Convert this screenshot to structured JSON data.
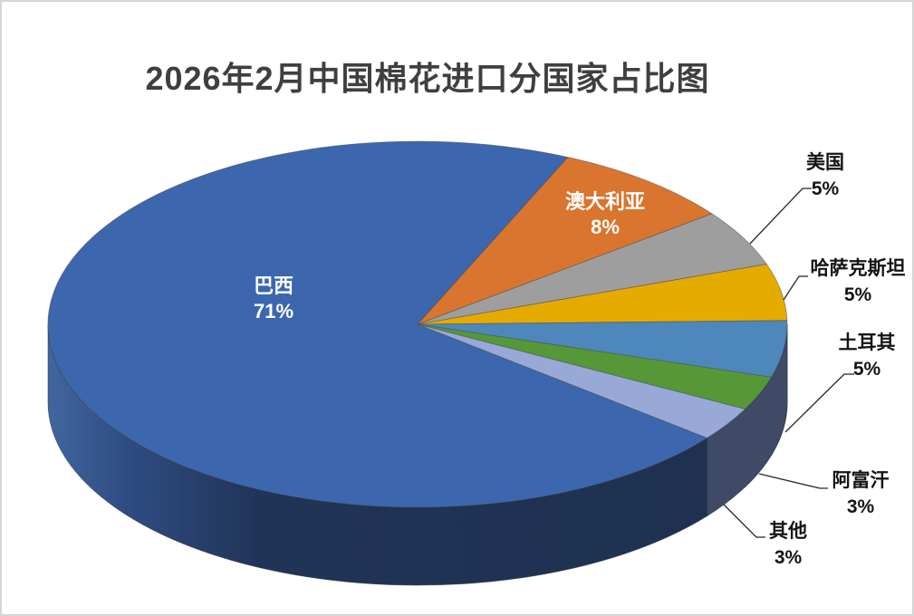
{
  "window": {
    "background": "#FFFFFF",
    "frame_color": "#D6D6D6"
  },
  "title": "2026年2月中国棉花进口分国家占比图",
  "chart_data": {
    "type": "pie",
    "style": "3d",
    "title": "2026年2月中国棉花进口分国家占比图",
    "unit": "%",
    "legend": "none",
    "data_labels": "category name + percent",
    "categories": [
      "巴西",
      "澳大利亚",
      "美国",
      "哈萨克斯坦",
      "土耳其",
      "阿富汗",
      "其他"
    ],
    "values": [
      71,
      8,
      5,
      5,
      5,
      3,
      3
    ],
    "slices": [
      {
        "label": "巴西",
        "value": 71,
        "pct": "71%",
        "color": "#3C67AE",
        "side_color": "#203457",
        "label_placement": "inside"
      },
      {
        "label": "澳大利亚",
        "value": 8,
        "pct": "8%",
        "color": "#D9752E",
        "side_color": "#8A4518",
        "label_placement": "inside"
      },
      {
        "label": "美国",
        "value": 5,
        "pct": "5%",
        "color": "#9E9E9E",
        "side_color": "#5F5F5F",
        "label_placement": "outside"
      },
      {
        "label": "哈萨克斯坦",
        "value": 5,
        "pct": "5%",
        "color": "#E6AB00",
        "side_color": "#8F6A00",
        "label_placement": "outside"
      },
      {
        "label": "土耳其",
        "value": 5,
        "pct": "5%",
        "color": "#4D87BC",
        "side_color": "#30506E",
        "label_placement": "outside"
      },
      {
        "label": "阿富汗",
        "value": 3,
        "pct": "3%",
        "color": "#569838",
        "side_color": "#2C411B",
        "label_placement": "outside"
      },
      {
        "label": "其他",
        "value": 3,
        "pct": "3%",
        "color": "#98A9D8",
        "side_color": "#3E4A66",
        "label_placement": "outside"
      }
    ],
    "leader_line_color": "#262626"
  }
}
